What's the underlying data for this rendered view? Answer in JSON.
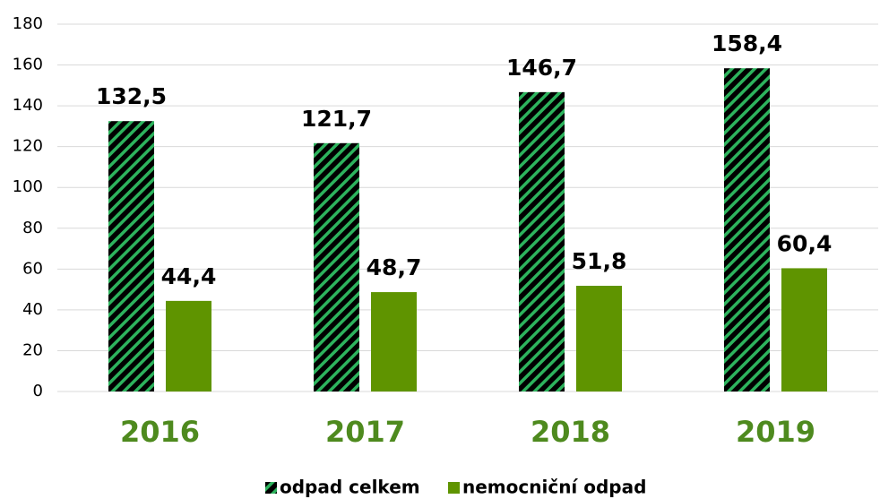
{
  "chart_data": {
    "type": "bar",
    "categories": [
      "2016",
      "2017",
      "2018",
      "2019"
    ],
    "series": [
      {
        "name": "odpad celkem",
        "color": "#000000",
        "hatch": true,
        "hatch_color": "#2db35d",
        "values": [
          132.5,
          121.7,
          146.7,
          158.4
        ],
        "value_labels": [
          "132,5",
          "121,7",
          "146,7",
          "158,4"
        ]
      },
      {
        "name": "nemocniční odpad",
        "color": "#5f9400",
        "values": [
          44.4,
          48.7,
          51.8,
          60.4
        ],
        "value_labels": [
          "44,4",
          "48,7",
          "51,8",
          "60,4"
        ]
      }
    ],
    "ylim": [
      0,
      180
    ],
    "yticks": [
      0,
      20,
      40,
      60,
      80,
      100,
      120,
      140,
      160,
      180
    ],
    "grid": true,
    "legend": "bottom",
    "category_color": "#4e8a1e"
  }
}
